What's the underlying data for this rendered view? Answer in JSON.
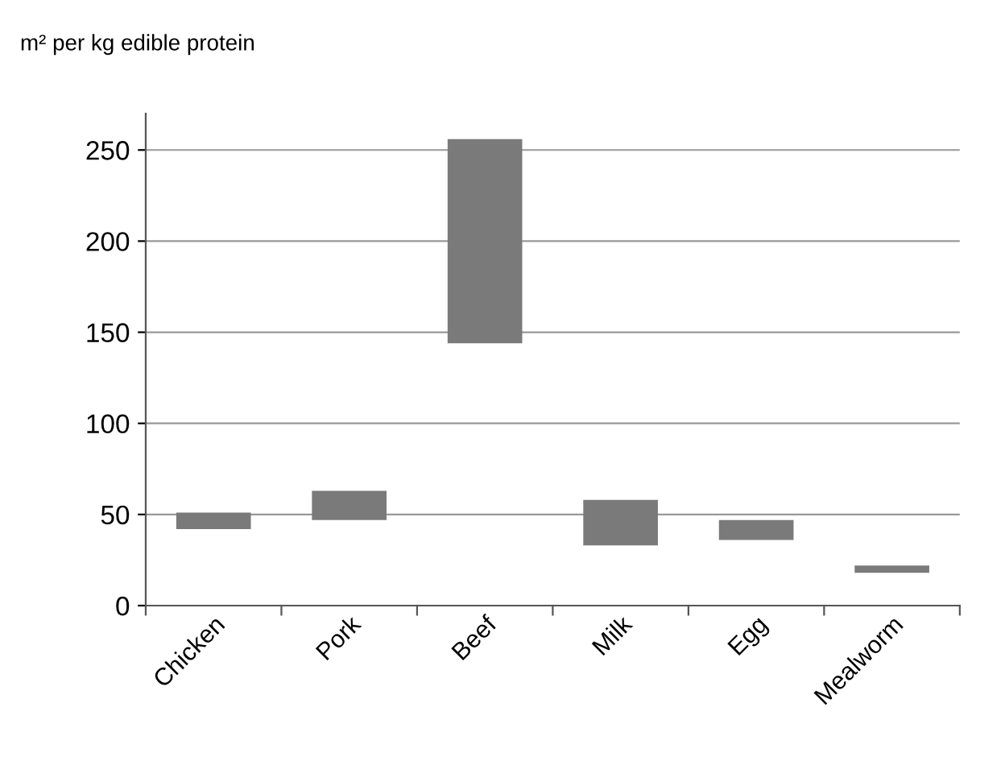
{
  "chart_data": {
    "type": "bar",
    "ylabel": "m² per kg edible protein",
    "categories": [
      "Chicken",
      "Pork",
      "Beef",
      "Milk",
      "Egg",
      "Mealworm"
    ],
    "base": [
      42,
      47,
      144,
      33,
      36,
      18
    ],
    "values": [
      9,
      16,
      112,
      25,
      11,
      4
    ],
    "color": "#7a7a7a",
    "ylim": [
      0,
      270
    ],
    "yticks": [
      0,
      50,
      100,
      150,
      200,
      250
    ],
    "grid": "y",
    "legend": false
  }
}
